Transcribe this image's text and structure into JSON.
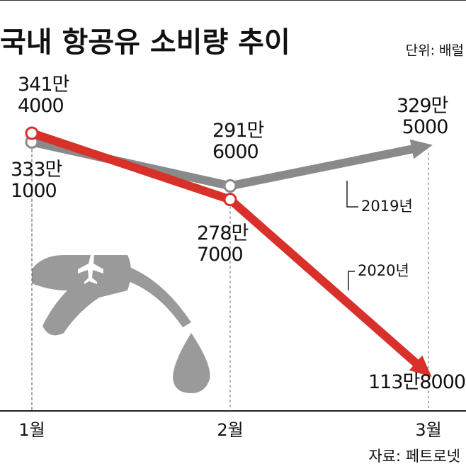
{
  "chart_data": {
    "type": "line",
    "title": "국내 항공유 소비량 추이",
    "unit": "단위: 배럴",
    "source": "자료: 페트로넷",
    "categories": [
      "1월",
      "2월",
      "3월"
    ],
    "series": [
      {
        "name": "2019년",
        "color": "#8a8a8a",
        "values": [
          3331000,
          2916000,
          3295000
        ],
        "value_labels": [
          "333만\n1000",
          "291만\n6000",
          "329만\n5000"
        ]
      },
      {
        "name": "2020년",
        "color": "#d8302a",
        "values": [
          3414000,
          2787000,
          1138000
        ],
        "value_labels": [
          "341만\n4000",
          "278만\n7000",
          "113만8000"
        ]
      }
    ]
  }
}
